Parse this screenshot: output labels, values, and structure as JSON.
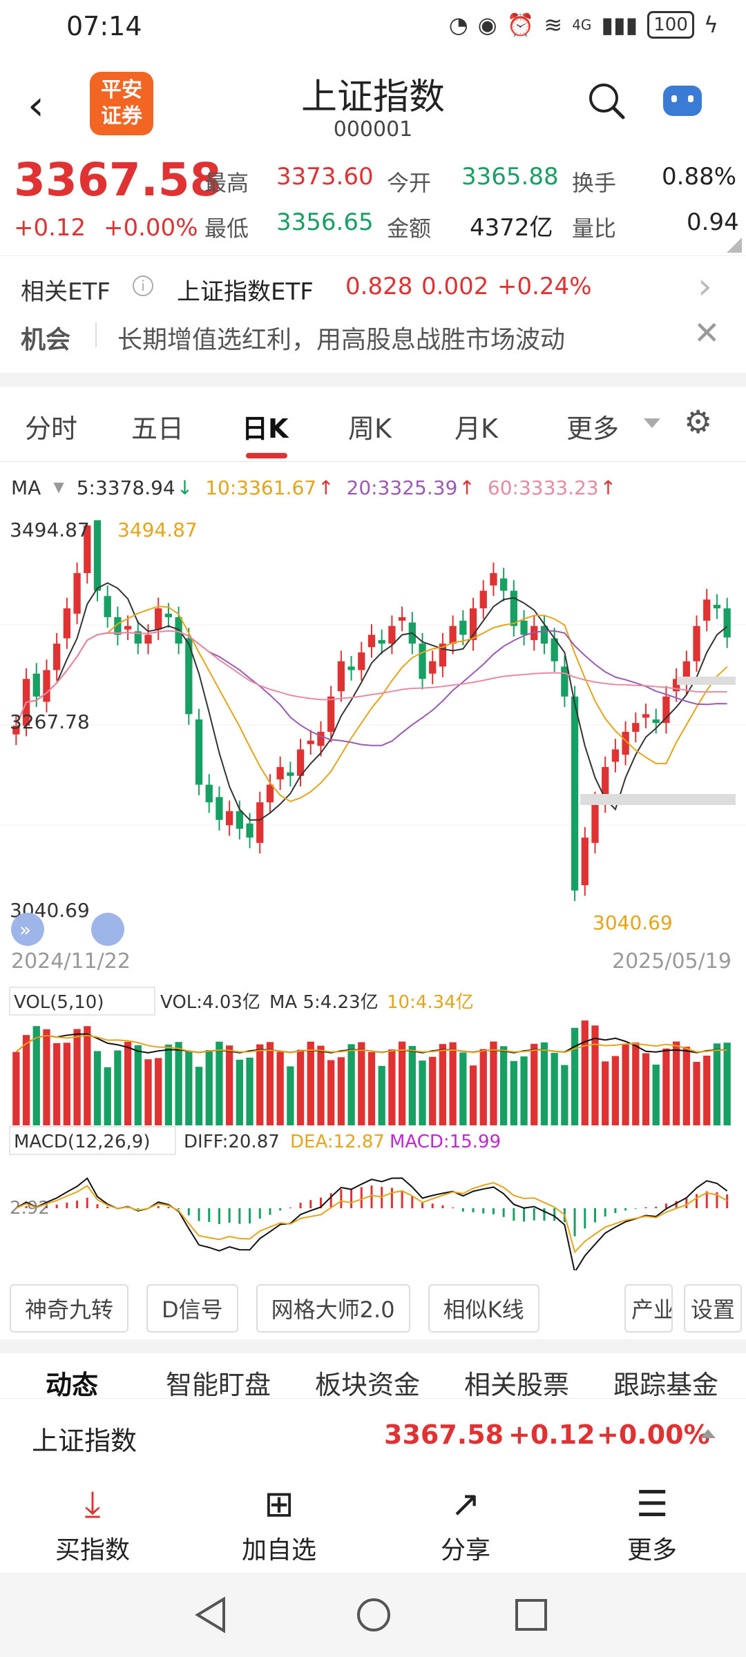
{
  "status_bar": {
    "time": "07:14",
    "network": "4G",
    "battery": "100"
  },
  "header": {
    "title": "上证指数",
    "code": "000001",
    "logo_text_1": "平安",
    "logo_text_2": "证券"
  },
  "quote": {
    "price": "3367.58",
    "change": "+0.12",
    "change_pct": "+0.00%",
    "high_label": "最高",
    "high": "3373.60",
    "open_label": "今开",
    "open": "3365.88",
    "turnover_label": "换手",
    "turnover": "0.88%",
    "low_label": "最低",
    "low": "3356.65",
    "amount_label": "金额",
    "amount": "4372亿",
    "ratio_label": "量比",
    "ratio": "0.94"
  },
  "etf": {
    "label": "相关ETF",
    "name": "上证指数ETF",
    "price": "0.828",
    "change": "0.002",
    "change_pct": "+0.24%"
  },
  "opportunity": {
    "label": "机会",
    "text": "长期增值选红利，用高股息战胜市场波动"
  },
  "tabs": [
    "分时",
    "五日",
    "日K",
    "周K",
    "月K",
    "更多"
  ],
  "active_tab": "日K",
  "ma": {
    "label": "MA",
    "ma5": "5:3378.94",
    "ma10": "10:3361.67",
    "ma20": "20:3325.39",
    "ma60": "60:3333.23"
  },
  "chart_data": {
    "type": "candlestick",
    "price_high_label": "3494.87",
    "price_mid_label": "3267.78",
    "price_low_label": "3040.69",
    "start_date": "2024/11/22",
    "end_date": "2025/05/19",
    "closes": [
      3267,
      3320,
      3300,
      3330,
      3360,
      3400,
      3440,
      3494,
      3420,
      3390,
      3370,
      3380,
      3360,
      3370,
      3400,
      3390,
      3360,
      3280,
      3200,
      3180,
      3160,
      3170,
      3150,
      3140,
      3180,
      3200,
      3220,
      3210,
      3240,
      3250,
      3260,
      3300,
      3340,
      3330,
      3350,
      3370,
      3360,
      3380,
      3390,
      3360,
      3320,
      3340,
      3360,
      3380,
      3370,
      3400,
      3420,
      3440,
      3420,
      3380,
      3370,
      3380,
      3360,
      3340,
      3300,
      3080,
      3140,
      3180,
      3220,
      3240,
      3260,
      3270,
      3280,
      3270,
      3300,
      3320,
      3340,
      3380,
      3410,
      3400,
      3367
    ],
    "vol_label": "VOL(5,10)",
    "vol": "VOL:4.03亿",
    "vol_ma5": "MA 5:4.23亿",
    "vol_ma10": "10:4.34亿",
    "macd_label": "MACD(12,26,9)",
    "diff": "DIFF:20.87",
    "dea": "DEA:12.87",
    "macd": "MACD:15.99",
    "macd_axis_label": "2.92"
  },
  "feature_buttons": [
    "神奇九转",
    "D信号",
    "网格大师2.0",
    "相似K线",
    "产业",
    "设置"
  ],
  "sub_tabs": [
    "动态",
    "智能盯盘",
    "板块资金",
    "相关股票",
    "跟踪基金"
  ],
  "ticker": {
    "name": "上证指数",
    "price": "3367.58",
    "change": "+0.12",
    "change_pct": "+0.00%"
  },
  "bottom_nav": [
    "买指数",
    "加自选",
    "分享",
    "更多"
  ]
}
